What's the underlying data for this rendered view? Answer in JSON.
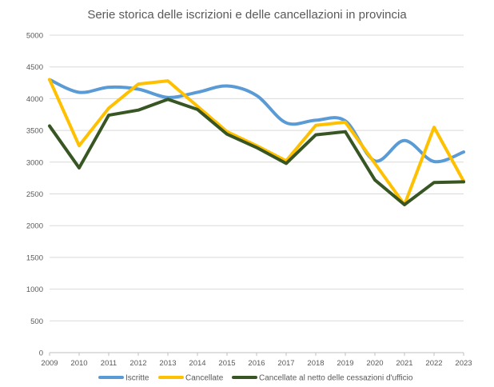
{
  "chart_data": {
    "type": "line",
    "title": "Serie storica delle iscrizioni e delle cancellazioni  in provincia",
    "xlabel": "",
    "ylabel": "",
    "x": [
      "2009",
      "2010",
      "2011",
      "2012",
      "2013",
      "2014",
      "2015",
      "2016",
      "2017",
      "2018",
      "2019",
      "2020",
      "2021",
      "2022",
      "2023"
    ],
    "ylim": [
      0,
      5000
    ],
    "yticks": [
      "0",
      "500",
      "1000",
      "1500",
      "2000",
      "2500",
      "3000",
      "3500",
      "4000",
      "4500",
      "5000"
    ],
    "grid": true,
    "legend_position": "bottom",
    "series": [
      {
        "name": "Iscritte",
        "color": "#5B9BD5",
        "smooth": true,
        "values": [
          4300,
          4100,
          4180,
          4150,
          4020,
          4100,
          4200,
          4050,
          3620,
          3660,
          3650,
          3020,
          3340,
          3010,
          3160
        ]
      },
      {
        "name": "Cancellate",
        "color": "#FFC000",
        "smooth": false,
        "values": [
          4300,
          3260,
          3850,
          4230,
          4280,
          3880,
          3480,
          3260,
          3020,
          3580,
          3630,
          2980,
          2330,
          3550,
          2700
        ]
      },
      {
        "name": "Cancellate al netto delle cessazioni d'ufficio",
        "color": "#375623",
        "smooth": false,
        "values": [
          3570,
          2910,
          3740,
          3820,
          3990,
          3830,
          3440,
          3230,
          2980,
          3430,
          3480,
          2720,
          2330,
          2680,
          2690
        ]
      }
    ]
  }
}
